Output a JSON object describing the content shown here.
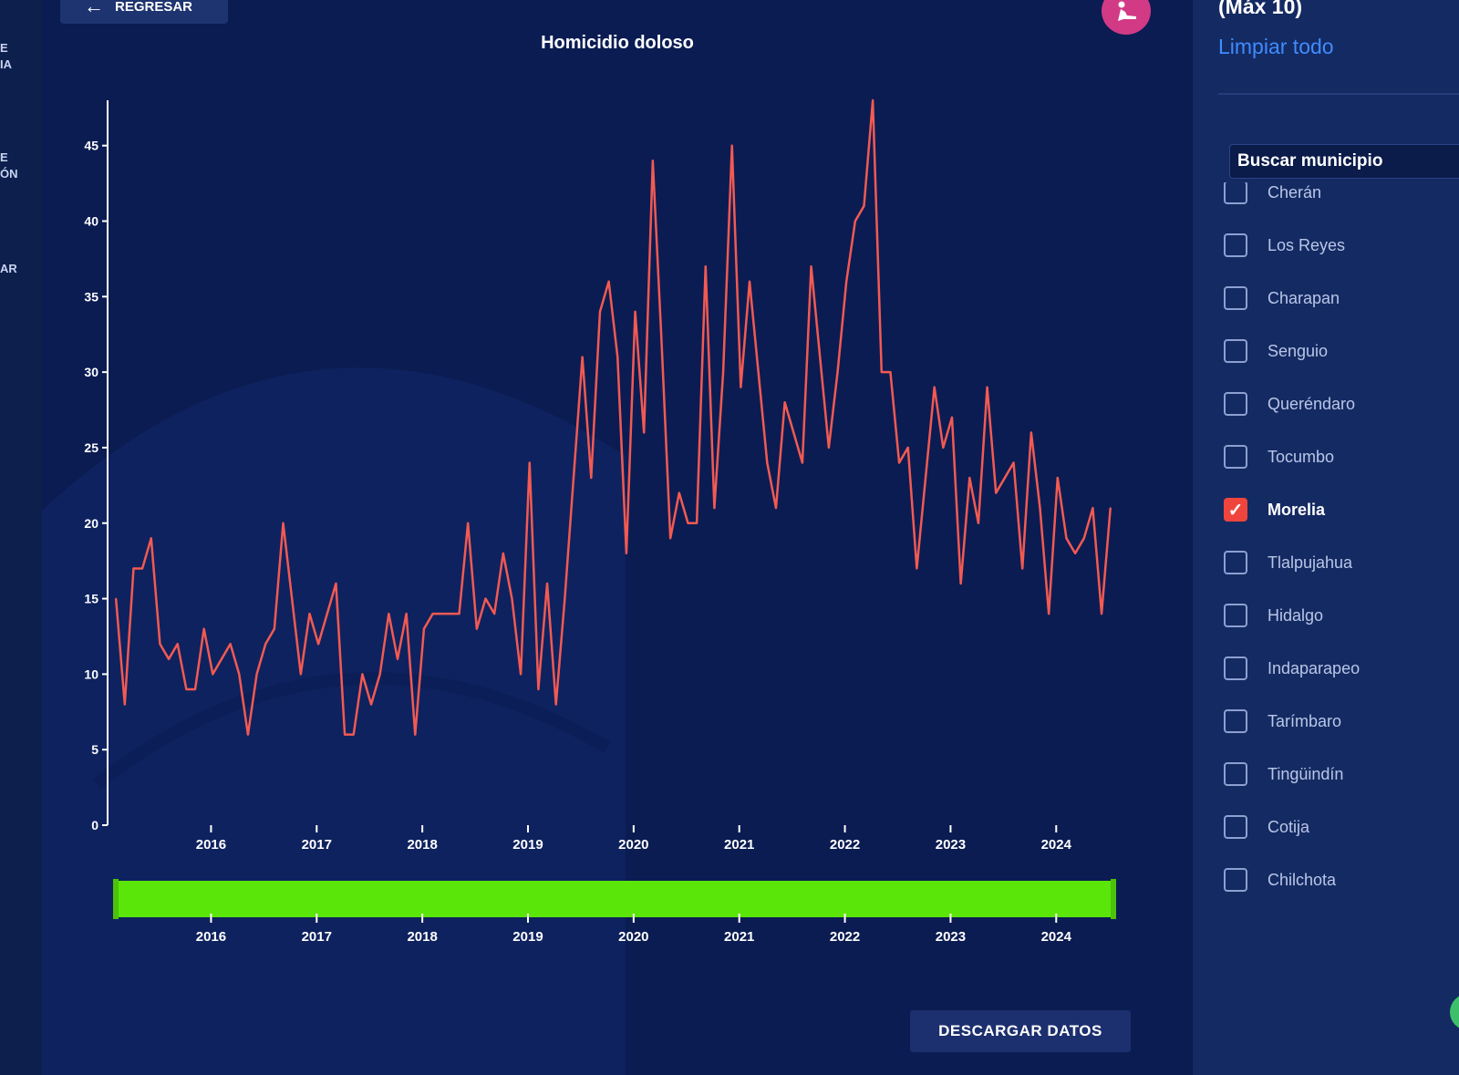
{
  "left_nav": {
    "fragments": [
      "E",
      "IA",
      "E",
      "ÓN",
      "AR"
    ]
  },
  "header": {
    "back_label": "REGRESAR",
    "avatar_icon": "person-icon"
  },
  "chart_data": {
    "type": "line",
    "title": "Homicidio doloso",
    "xlabel": "",
    "ylabel": "",
    "ylim": [
      0,
      48
    ],
    "yticks": [
      0,
      5,
      10,
      15,
      20,
      25,
      30,
      35,
      40,
      45
    ],
    "xticks": [
      2016,
      2017,
      2018,
      2019,
      2020,
      2021,
      2022,
      2023,
      2024
    ],
    "xlim": [
      2015.09,
      2024.55
    ],
    "x_start": 2015.1,
    "x_step": 0.0833,
    "series": [
      {
        "color": "#f25a52",
        "values": [
          15,
          8,
          17,
          17,
          19,
          12,
          11,
          12,
          9,
          9,
          13,
          10,
          11,
          12,
          10,
          6,
          10,
          12,
          13,
          20,
          15,
          10,
          14,
          12,
          14,
          16,
          6,
          6,
          10,
          8,
          10,
          14,
          11,
          14,
          6,
          13,
          14,
          14,
          14,
          14,
          20,
          13,
          15,
          14,
          18,
          15,
          10,
          24,
          9,
          16,
          8,
          15,
          23,
          31,
          23,
          34,
          36,
          31,
          18,
          34,
          26,
          44,
          32,
          19,
          22,
          20,
          20,
          37,
          21,
          30,
          45,
          29,
          36,
          30,
          24,
          21,
          28,
          26,
          24,
          37,
          31,
          25,
          30,
          36,
          40,
          41,
          48,
          30,
          30,
          24,
          25,
          17,
          23,
          29,
          25,
          27,
          16,
          23,
          20,
          29,
          22,
          23,
          24,
          17,
          26,
          21,
          14,
          23,
          19,
          18,
          19,
          21,
          14,
          21
        ]
      }
    ],
    "range_selector": {
      "color": "#5be60a",
      "ticks": [
        2016,
        2017,
        2018,
        2019,
        2020,
        2021,
        2022,
        2023,
        2024
      ]
    }
  },
  "footer": {
    "download_label": "DESCARGAR DATOS"
  },
  "panel": {
    "max_label": "(Máx 10)",
    "clear_all_label": "Limpiar todo",
    "search_placeholder": "Buscar municipio",
    "checked_color": "#f0453c",
    "municipalities": [
      {
        "label": "Cherán",
        "checked": false
      },
      {
        "label": "Los Reyes",
        "checked": false
      },
      {
        "label": "Charapan",
        "checked": false
      },
      {
        "label": "Senguio",
        "checked": false
      },
      {
        "label": "Queréndaro",
        "checked": false
      },
      {
        "label": "Tocumbo",
        "checked": false
      },
      {
        "label": "Morelia",
        "checked": true
      },
      {
        "label": "Tlalpujahua",
        "checked": false
      },
      {
        "label": "Hidalgo",
        "checked": false
      },
      {
        "label": "Indaparapeo",
        "checked": false
      },
      {
        "label": "Tarímbaro",
        "checked": false
      },
      {
        "label": "Tingüindín",
        "checked": false
      },
      {
        "label": "Cotija",
        "checked": false
      },
      {
        "label": "Chilchota",
        "checked": false
      }
    ]
  }
}
